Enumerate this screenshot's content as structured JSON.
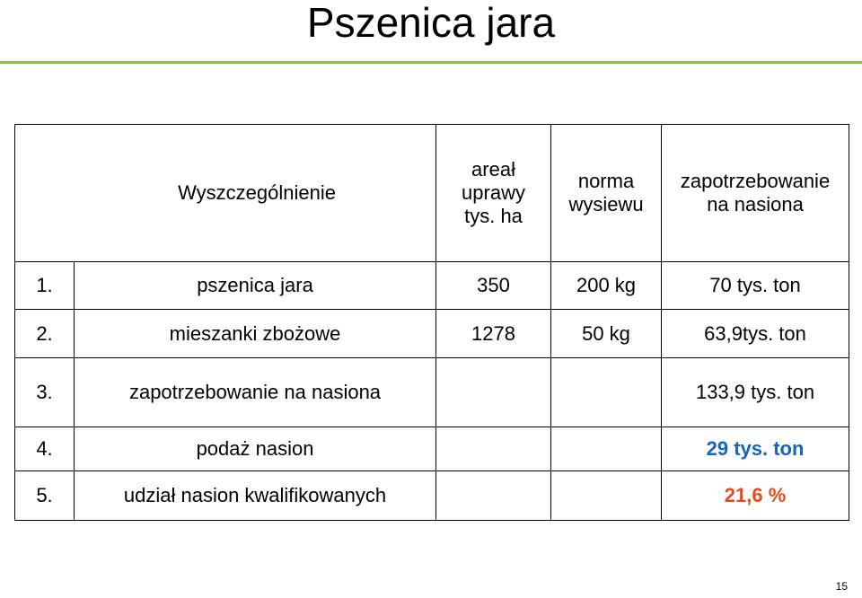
{
  "title": "Pszenica jara",
  "table": {
    "header": {
      "item": "Wyszczególnienie",
      "area": "areał\nuprawy\ntys. ha",
      "norm": "norma\nwysiewu",
      "demand": "zapotrzebowanie\nna nasiona"
    },
    "rows": [
      {
        "num": "1.",
        "name": "pszenica jara",
        "area": "350",
        "norm": "200 kg",
        "demand": "70 tys. ton"
      },
      {
        "num": "2.",
        "name": "mieszanki zbożowe",
        "area": "1278",
        "norm": "50 kg",
        "demand": "63,9tys. ton"
      },
      {
        "num": "3.",
        "name": "zapotrzebowanie na nasiona",
        "area": "",
        "norm": "",
        "demand": "133,9 tys. ton"
      },
      {
        "num": "4.",
        "name": "podaż nasion",
        "area": "",
        "norm": "",
        "demand": "29 tys. ton"
      },
      {
        "num": "5.",
        "name": "udział nasion kwalifikowanych",
        "area": "",
        "norm": "",
        "demand": "21,6 %"
      }
    ]
  },
  "colors": {
    "divider": "#8bc34a",
    "highlight_blue": "#1565c0",
    "highlight_red": "#e64a19"
  },
  "page_number": "15"
}
